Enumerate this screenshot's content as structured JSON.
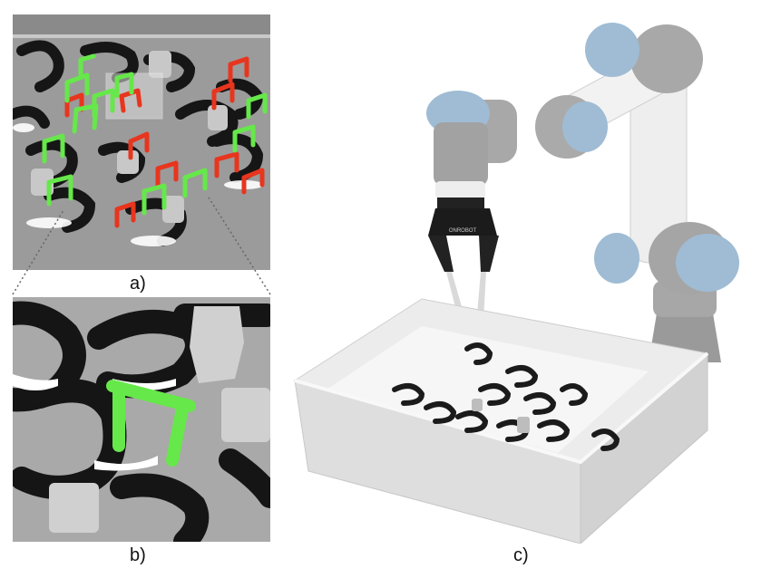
{
  "figure": {
    "panels": [
      {
        "id": "a",
        "caption": "a)",
        "content": "scene-with-grasp-candidates"
      },
      {
        "id": "b",
        "caption": "b)",
        "content": "zoomed-grasp"
      },
      {
        "id": "c",
        "caption": "c)",
        "content": "robot-arm-bin-picking"
      }
    ],
    "gripper_brand": "ONROBOT"
  },
  "colors": {
    "good_grasp": "#66e84a",
    "bad_grasp": "#e8351e",
    "robot_white": "#eeeeee",
    "robot_cap_blue": "#9fbcd4",
    "part_black": "#1a1a1a",
    "bin": "#e2e2e2"
  }
}
